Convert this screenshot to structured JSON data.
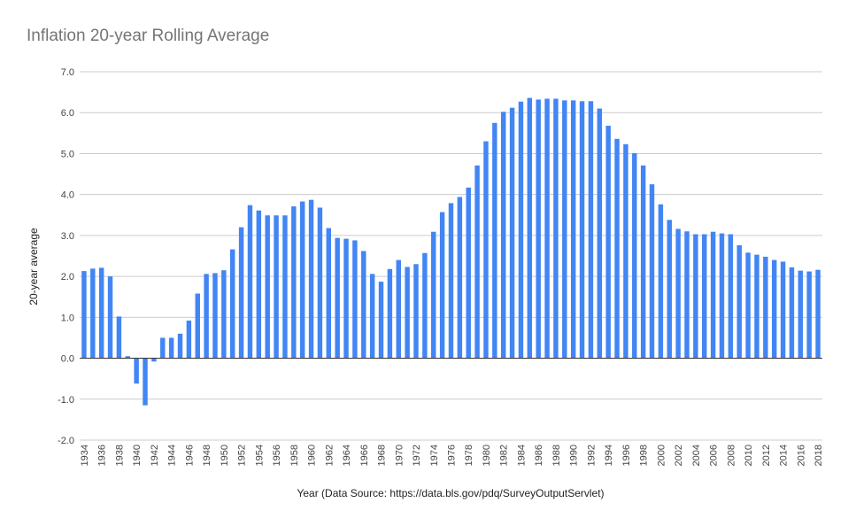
{
  "chart_data": {
    "type": "bar",
    "title": "Inflation 20-year Rolling Average",
    "xlabel": "Year (Data Source: https://data.bls.gov/pdq/SurveyOutputServlet)",
    "ylabel": "20-year average",
    "ylim": [
      -2.0,
      7.0
    ],
    "yticks": [
      "-2.0",
      "-1.0",
      "0.0",
      "1.0",
      "2.0",
      "3.0",
      "4.0",
      "5.0",
      "6.0",
      "7.0"
    ],
    "grid": true,
    "bar_color": "#4285f4",
    "categories": [
      "1934",
      "1935",
      "1936",
      "1937",
      "1938",
      "1939",
      "1940",
      "1941",
      "1942",
      "1943",
      "1944",
      "1945",
      "1946",
      "1947",
      "1948",
      "1949",
      "1950",
      "1951",
      "1952",
      "1953",
      "1954",
      "1955",
      "1956",
      "1957",
      "1958",
      "1959",
      "1960",
      "1961",
      "1962",
      "1963",
      "1964",
      "1965",
      "1966",
      "1967",
      "1968",
      "1969",
      "1970",
      "1971",
      "1972",
      "1973",
      "1974",
      "1975",
      "1976",
      "1977",
      "1978",
      "1979",
      "1980",
      "1981",
      "1982",
      "1983",
      "1984",
      "1985",
      "1986",
      "1987",
      "1988",
      "1989",
      "1990",
      "1991",
      "1992",
      "1993",
      "1994",
      "1995",
      "1996",
      "1997",
      "1998",
      "1999",
      "2000",
      "2001",
      "2002",
      "2003",
      "2004",
      "2005",
      "2006",
      "2007",
      "2008",
      "2009",
      "2010",
      "2011",
      "2012",
      "2013",
      "2014",
      "2015",
      "2016",
      "2017",
      "2018"
    ],
    "xtick_labels": [
      "1934",
      "1936",
      "1938",
      "1940",
      "1942",
      "1944",
      "1946",
      "1948",
      "1950",
      "1952",
      "1954",
      "1956",
      "1958",
      "1960",
      "1962",
      "1964",
      "1966",
      "1968",
      "1970",
      "1972",
      "1974",
      "1976",
      "1978",
      "1980",
      "1982",
      "1984",
      "1986",
      "1988",
      "1990",
      "1992",
      "1994",
      "1996",
      "1998",
      "2000",
      "2002",
      "2004",
      "2006",
      "2008",
      "2010",
      "2012",
      "2014",
      "2016",
      "2018"
    ],
    "values": [
      2.13,
      2.19,
      2.21,
      2.0,
      1.02,
      0.05,
      -0.62,
      -1.15,
      -0.08,
      0.5,
      0.5,
      0.6,
      0.92,
      1.58,
      2.06,
      2.08,
      2.15,
      2.66,
      3.2,
      3.74,
      3.61,
      3.49,
      3.49,
      3.49,
      3.71,
      3.83,
      3.87,
      3.68,
      3.18,
      2.94,
      2.92,
      2.88,
      2.62,
      2.06,
      1.87,
      2.18,
      2.4,
      2.23,
      2.3,
      2.57,
      3.09,
      3.57,
      3.79,
      3.94,
      4.17,
      4.71,
      5.3,
      5.75,
      6.02,
      6.12,
      6.27,
      6.36,
      6.32,
      6.34,
      6.34,
      6.3,
      6.3,
      6.28,
      6.28,
      6.1,
      5.68,
      5.36,
      5.23,
      5.01,
      4.71,
      4.25,
      3.76,
      3.38,
      3.16,
      3.1,
      3.03,
      3.03,
      3.09,
      3.05,
      3.03,
      2.76,
      2.58,
      2.53,
      2.48,
      2.4,
      2.36,
      2.22,
      2.14,
      2.12,
      2.16
    ]
  }
}
